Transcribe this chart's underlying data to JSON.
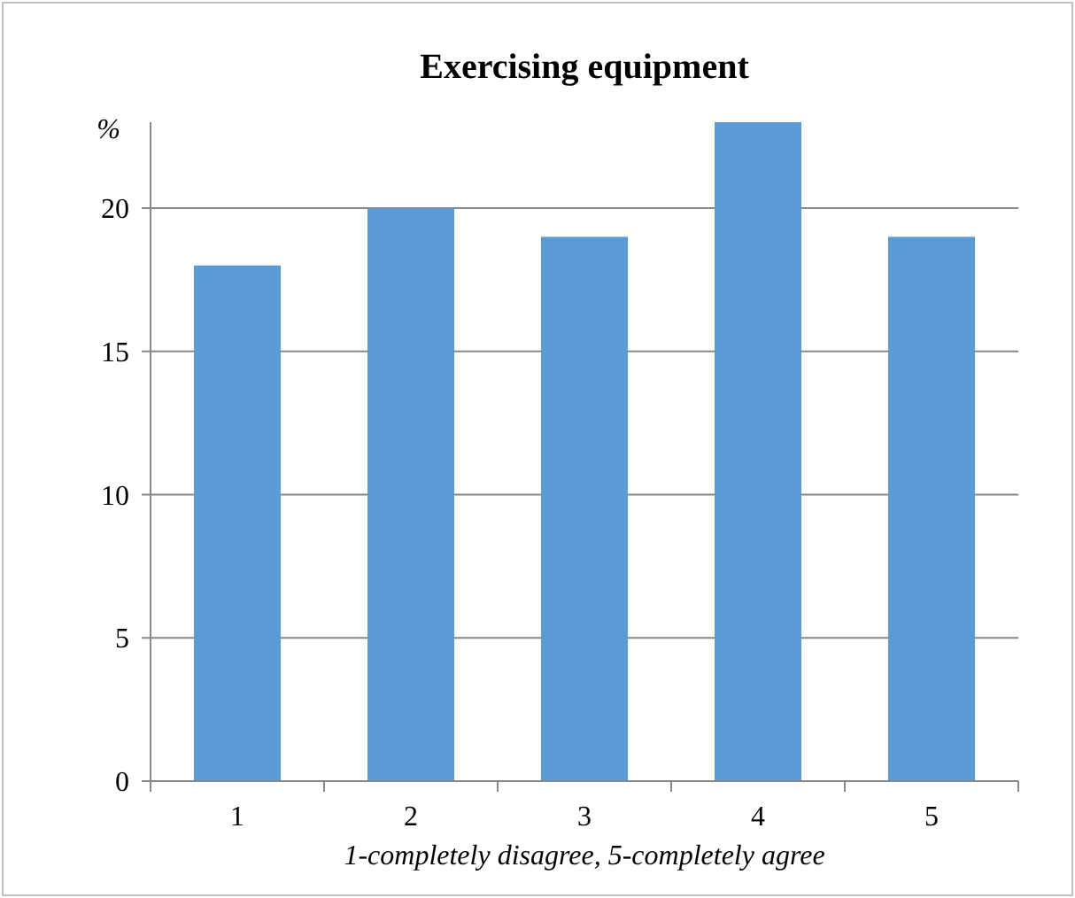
{
  "chart_data": {
    "type": "bar",
    "title": "Exercising equipment",
    "xlabel": "1-completely disagree, 5-completely agree",
    "ylabel": "%",
    "categories": [
      "1",
      "2",
      "3",
      "4",
      "5"
    ],
    "values": [
      18,
      20,
      19,
      23,
      19
    ],
    "color": "#5b9bd5",
    "ylim": [
      0,
      23
    ],
    "yticks": [
      0,
      5,
      10,
      15,
      20
    ],
    "grid": "y"
  }
}
